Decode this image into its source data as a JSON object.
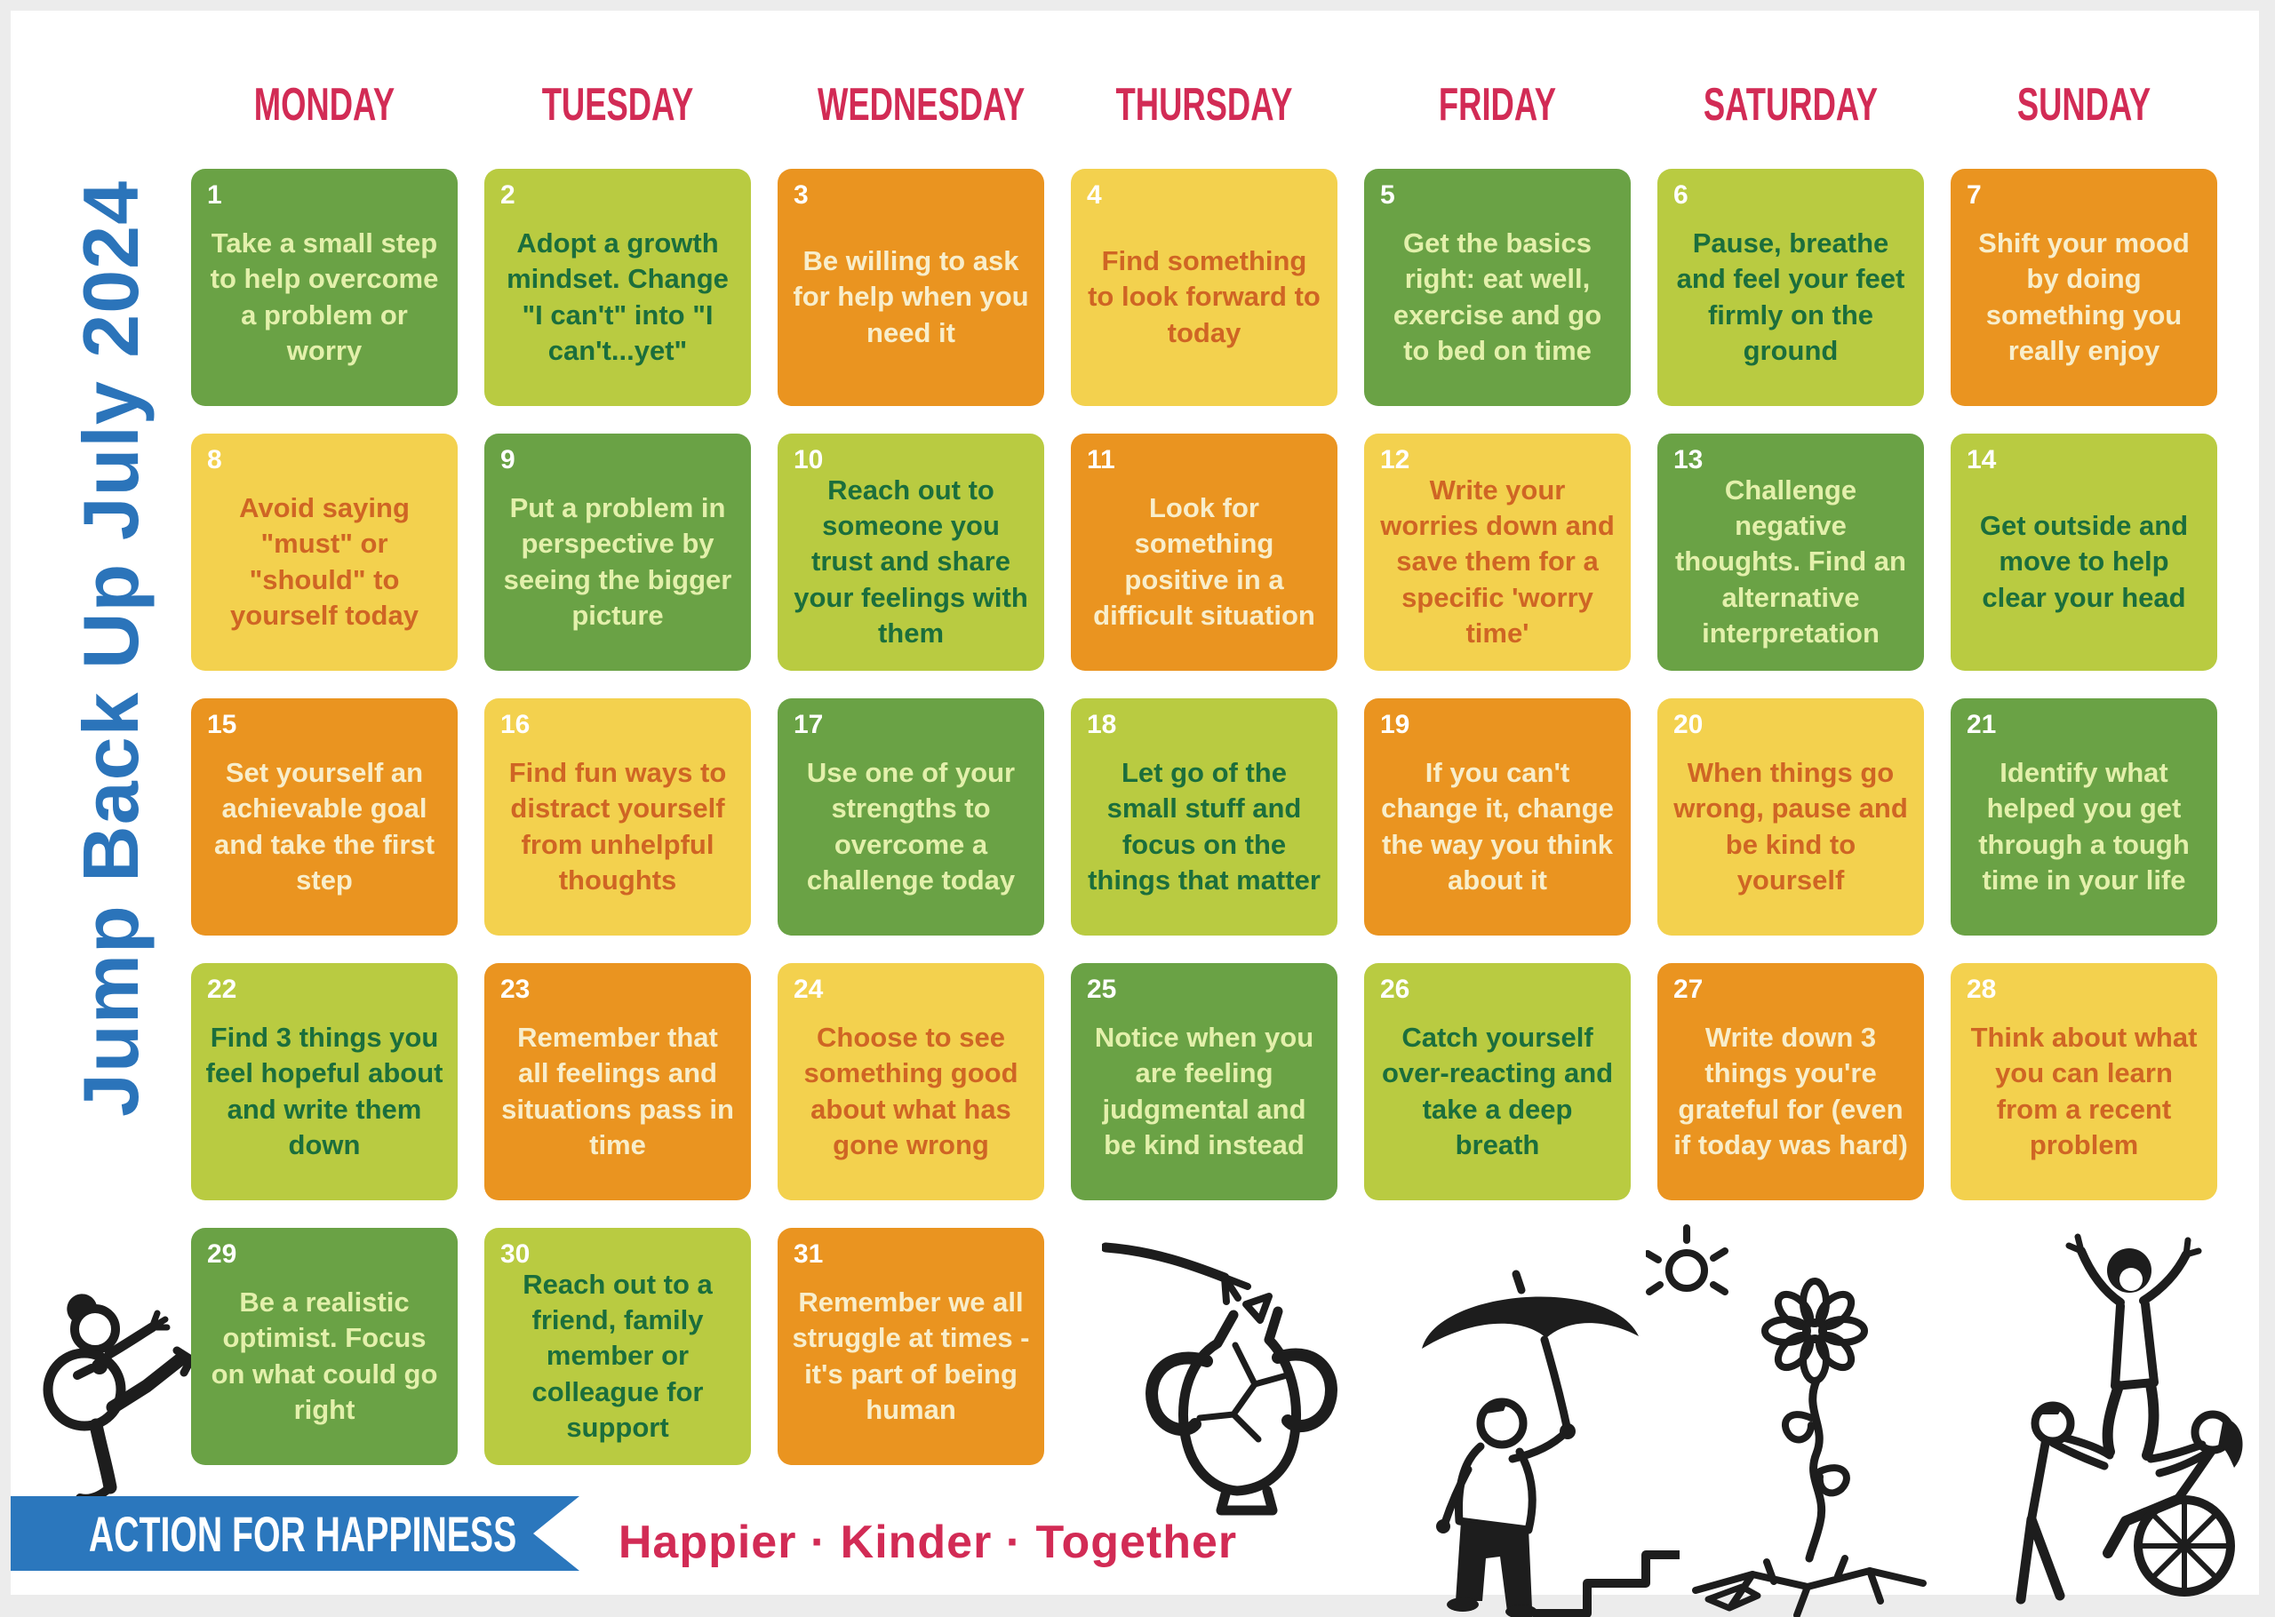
{
  "poster": {
    "title": "Jump Back Up July 2024",
    "brand": "ACTION FOR HAPPINESS",
    "tagline": "Happier · Kinder · Together"
  },
  "weekday_headers": [
    "MONDAY",
    "TUESDAY",
    "WEDNESDAY",
    "THURSDAY",
    "FRIDAY",
    "SATURDAY",
    "SUNDAY"
  ],
  "days": [
    {
      "num": "1",
      "variant": "green",
      "text": "Take a small step to help overcome a problem or worry"
    },
    {
      "num": "2",
      "variant": "lightgreen",
      "text": "Adopt a growth mindset. Change \"I can't\" into \"I can't...yet\""
    },
    {
      "num": "3",
      "variant": "orange",
      "text": "Be willing to ask for help when you need it"
    },
    {
      "num": "4",
      "variant": "yellow",
      "text": "Find something to look forward to today"
    },
    {
      "num": "5",
      "variant": "green",
      "text": "Get the basics right: eat well, exercise and go to bed on time"
    },
    {
      "num": "6",
      "variant": "lightgreen",
      "text": "Pause, breathe and feel your feet firmly on the ground"
    },
    {
      "num": "7",
      "variant": "orange",
      "text": "Shift your mood by doing something you really enjoy"
    },
    {
      "num": "8",
      "variant": "yellow",
      "text": "Avoid saying \"must\" or \"should\" to yourself today"
    },
    {
      "num": "9",
      "variant": "green",
      "text": "Put a problem in perspective by seeing the bigger picture"
    },
    {
      "num": "10",
      "variant": "lightgreen",
      "text": "Reach out to someone you trust and share your feelings with them"
    },
    {
      "num": "11",
      "variant": "orange",
      "text": "Look for something positive in a difficult situation"
    },
    {
      "num": "12",
      "variant": "yellow",
      "text": "Write your worries down and save them for a specific 'worry time'"
    },
    {
      "num": "13",
      "variant": "green",
      "text": "Challenge negative thoughts. Find an alternative interpretation"
    },
    {
      "num": "14",
      "variant": "lightgreen",
      "text": "Get outside and move to help clear your head"
    },
    {
      "num": "15",
      "variant": "orange",
      "text": "Set yourself an achievable goal and take the first step"
    },
    {
      "num": "16",
      "variant": "yellow",
      "text": "Find fun ways to distract yourself from unhelpful thoughts"
    },
    {
      "num": "17",
      "variant": "green",
      "text": "Use one of your strengths to overcome a challenge today"
    },
    {
      "num": "18",
      "variant": "lightgreen",
      "text": "Let go of the small stuff and focus on the things that matter"
    },
    {
      "num": "19",
      "variant": "orange",
      "text": "If you can't change it, change the way you think about it"
    },
    {
      "num": "20",
      "variant": "yellow",
      "text": "When things go wrong, pause and be kind to yourself"
    },
    {
      "num": "21",
      "variant": "green",
      "text": "Identify what helped you get through a tough time in your life"
    },
    {
      "num": "22",
      "variant": "lightgreen",
      "text": "Find 3 things you feel hopeful about and write them down"
    },
    {
      "num": "23",
      "variant": "orange",
      "text": "Remember that all feelings and situations pass in time"
    },
    {
      "num": "24",
      "variant": "yellow",
      "text": "Choose to see something good about what has gone wrong"
    },
    {
      "num": "25",
      "variant": "green",
      "text": "Notice when you are feeling judgmental and be kind instead"
    },
    {
      "num": "26",
      "variant": "lightgreen",
      "text": "Catch yourself over-reacting and take a deep breath"
    },
    {
      "num": "27",
      "variant": "orange",
      "text": "Write down 3 things you're grateful for (even if today was hard)"
    },
    {
      "num": "28",
      "variant": "yellow",
      "text": "Think about what you can learn from a recent problem"
    },
    {
      "num": "29",
      "variant": "green",
      "text": "Be a realistic optimist. Focus on what could go right"
    },
    {
      "num": "30",
      "variant": "lightgreen",
      "text": "Reach out to a friend, family member or colleague for support"
    },
    {
      "num": "31",
      "variant": "orange",
      "text": "Remember we all struggle at times - it's part of being human"
    }
  ],
  "colors": {
    "tile_green": "#6aa245",
    "tile_light_green": "#b9cb41",
    "tile_orange": "#ea9420",
    "tile_yellow": "#f3d14e",
    "text_on_green": "#e3f0ab",
    "text_on_light_green": "#1b6e3c",
    "text_on_orange": "#f8eecb",
    "text_on_yellow": "#cf6524",
    "day_number": "#ffffff",
    "header_pink": "#d22b55",
    "title_blue": "#2b74ba",
    "ribbon_blue": "#2b77bd",
    "page_white": "#ffffff",
    "frame_gray": "#ececec"
  },
  "illustrations": [
    "karate-kick-person",
    "hand-mending-broken-vase",
    "person-with-umbrella-climbing-steps",
    "sun-doodle",
    "flower-growing-through-cracked-ground",
    "friends-lifting-up-wheelchair-user"
  ]
}
